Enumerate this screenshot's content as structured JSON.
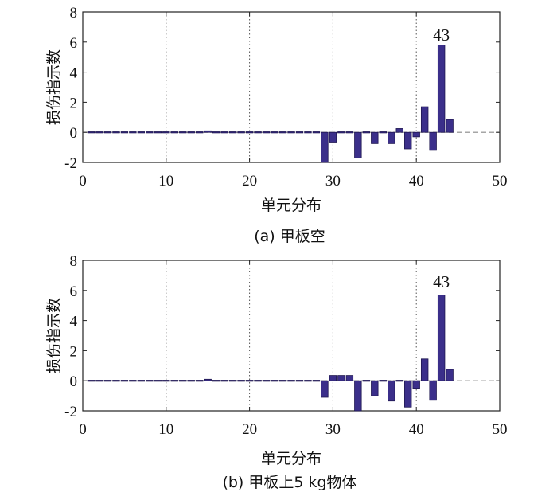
{
  "chart_data": [
    {
      "type": "bar",
      "caption": "(a) 甲板空",
      "xlabel": "单元分布",
      "ylabel": "损伤指示数",
      "xlim": [
        0,
        50
      ],
      "ylim": [
        -2,
        8
      ],
      "xticks": [
        0,
        10,
        20,
        30,
        40,
        50
      ],
      "yticks": [
        -2,
        0,
        2,
        4,
        6,
        8
      ],
      "grid": "dotted vertical at x = 10, 20, 30, 40",
      "annotation": {
        "text": "43",
        "x": 43
      },
      "bar_color": "#3b2f8a",
      "x": [
        1,
        2,
        3,
        4,
        5,
        6,
        7,
        8,
        9,
        10,
        11,
        12,
        13,
        14,
        15,
        16,
        17,
        18,
        19,
        20,
        21,
        22,
        23,
        24,
        25,
        26,
        27,
        28,
        29,
        30,
        31,
        32,
        33,
        34,
        35,
        36,
        37,
        38,
        39,
        40,
        41,
        42,
        43,
        44
      ],
      "values": [
        -0.02,
        -0.02,
        -0.02,
        -0.02,
        -0.02,
        -0.02,
        -0.02,
        -0.02,
        -0.02,
        -0.02,
        -0.02,
        -0.02,
        0.05,
        -0.02,
        0.1,
        0.02,
        0,
        0,
        0,
        0,
        0,
        0,
        0,
        0,
        0,
        0,
        0,
        0,
        -2.0,
        -0.65,
        0,
        0,
        -1.7,
        0,
        -0.75,
        0,
        -0.75,
        0.25,
        -1.1,
        -0.3,
        1.7,
        -1.2,
        5.8,
        0.85
      ]
    },
    {
      "type": "bar",
      "caption": "(b) 甲板上5 kg物体",
      "xlabel": "单元分布",
      "ylabel": "损伤指示数",
      "xlim": [
        0,
        50
      ],
      "ylim": [
        -2,
        8
      ],
      "xticks": [
        0,
        10,
        20,
        30,
        40,
        50
      ],
      "yticks": [
        -2,
        0,
        2,
        4,
        6,
        8
      ],
      "grid": "dotted vertical at x = 10, 20, 30, 40",
      "annotation": {
        "text": "43",
        "x": 43
      },
      "bar_color": "#3b2f8a",
      "x": [
        1,
        2,
        3,
        4,
        5,
        6,
        7,
        8,
        9,
        10,
        11,
        12,
        13,
        14,
        15,
        16,
        17,
        18,
        19,
        20,
        21,
        22,
        23,
        24,
        25,
        26,
        27,
        28,
        29,
        30,
        31,
        32,
        33,
        34,
        35,
        36,
        37,
        38,
        39,
        40,
        41,
        42,
        43,
        44
      ],
      "values": [
        -0.02,
        -0.02,
        -0.02,
        -0.02,
        -0.02,
        -0.02,
        -0.02,
        -0.02,
        -0.02,
        -0.02,
        -0.02,
        -0.02,
        0.05,
        -0.02,
        0.1,
        0.02,
        0,
        0,
        0,
        0,
        0,
        0,
        0,
        0,
        0,
        0,
        0,
        0,
        -1.1,
        0.35,
        0.35,
        0.35,
        -2.0,
        0,
        -1.0,
        0,
        -1.35,
        0,
        -1.75,
        -0.5,
        1.45,
        -1.3,
        5.7,
        0.75
      ]
    }
  ]
}
